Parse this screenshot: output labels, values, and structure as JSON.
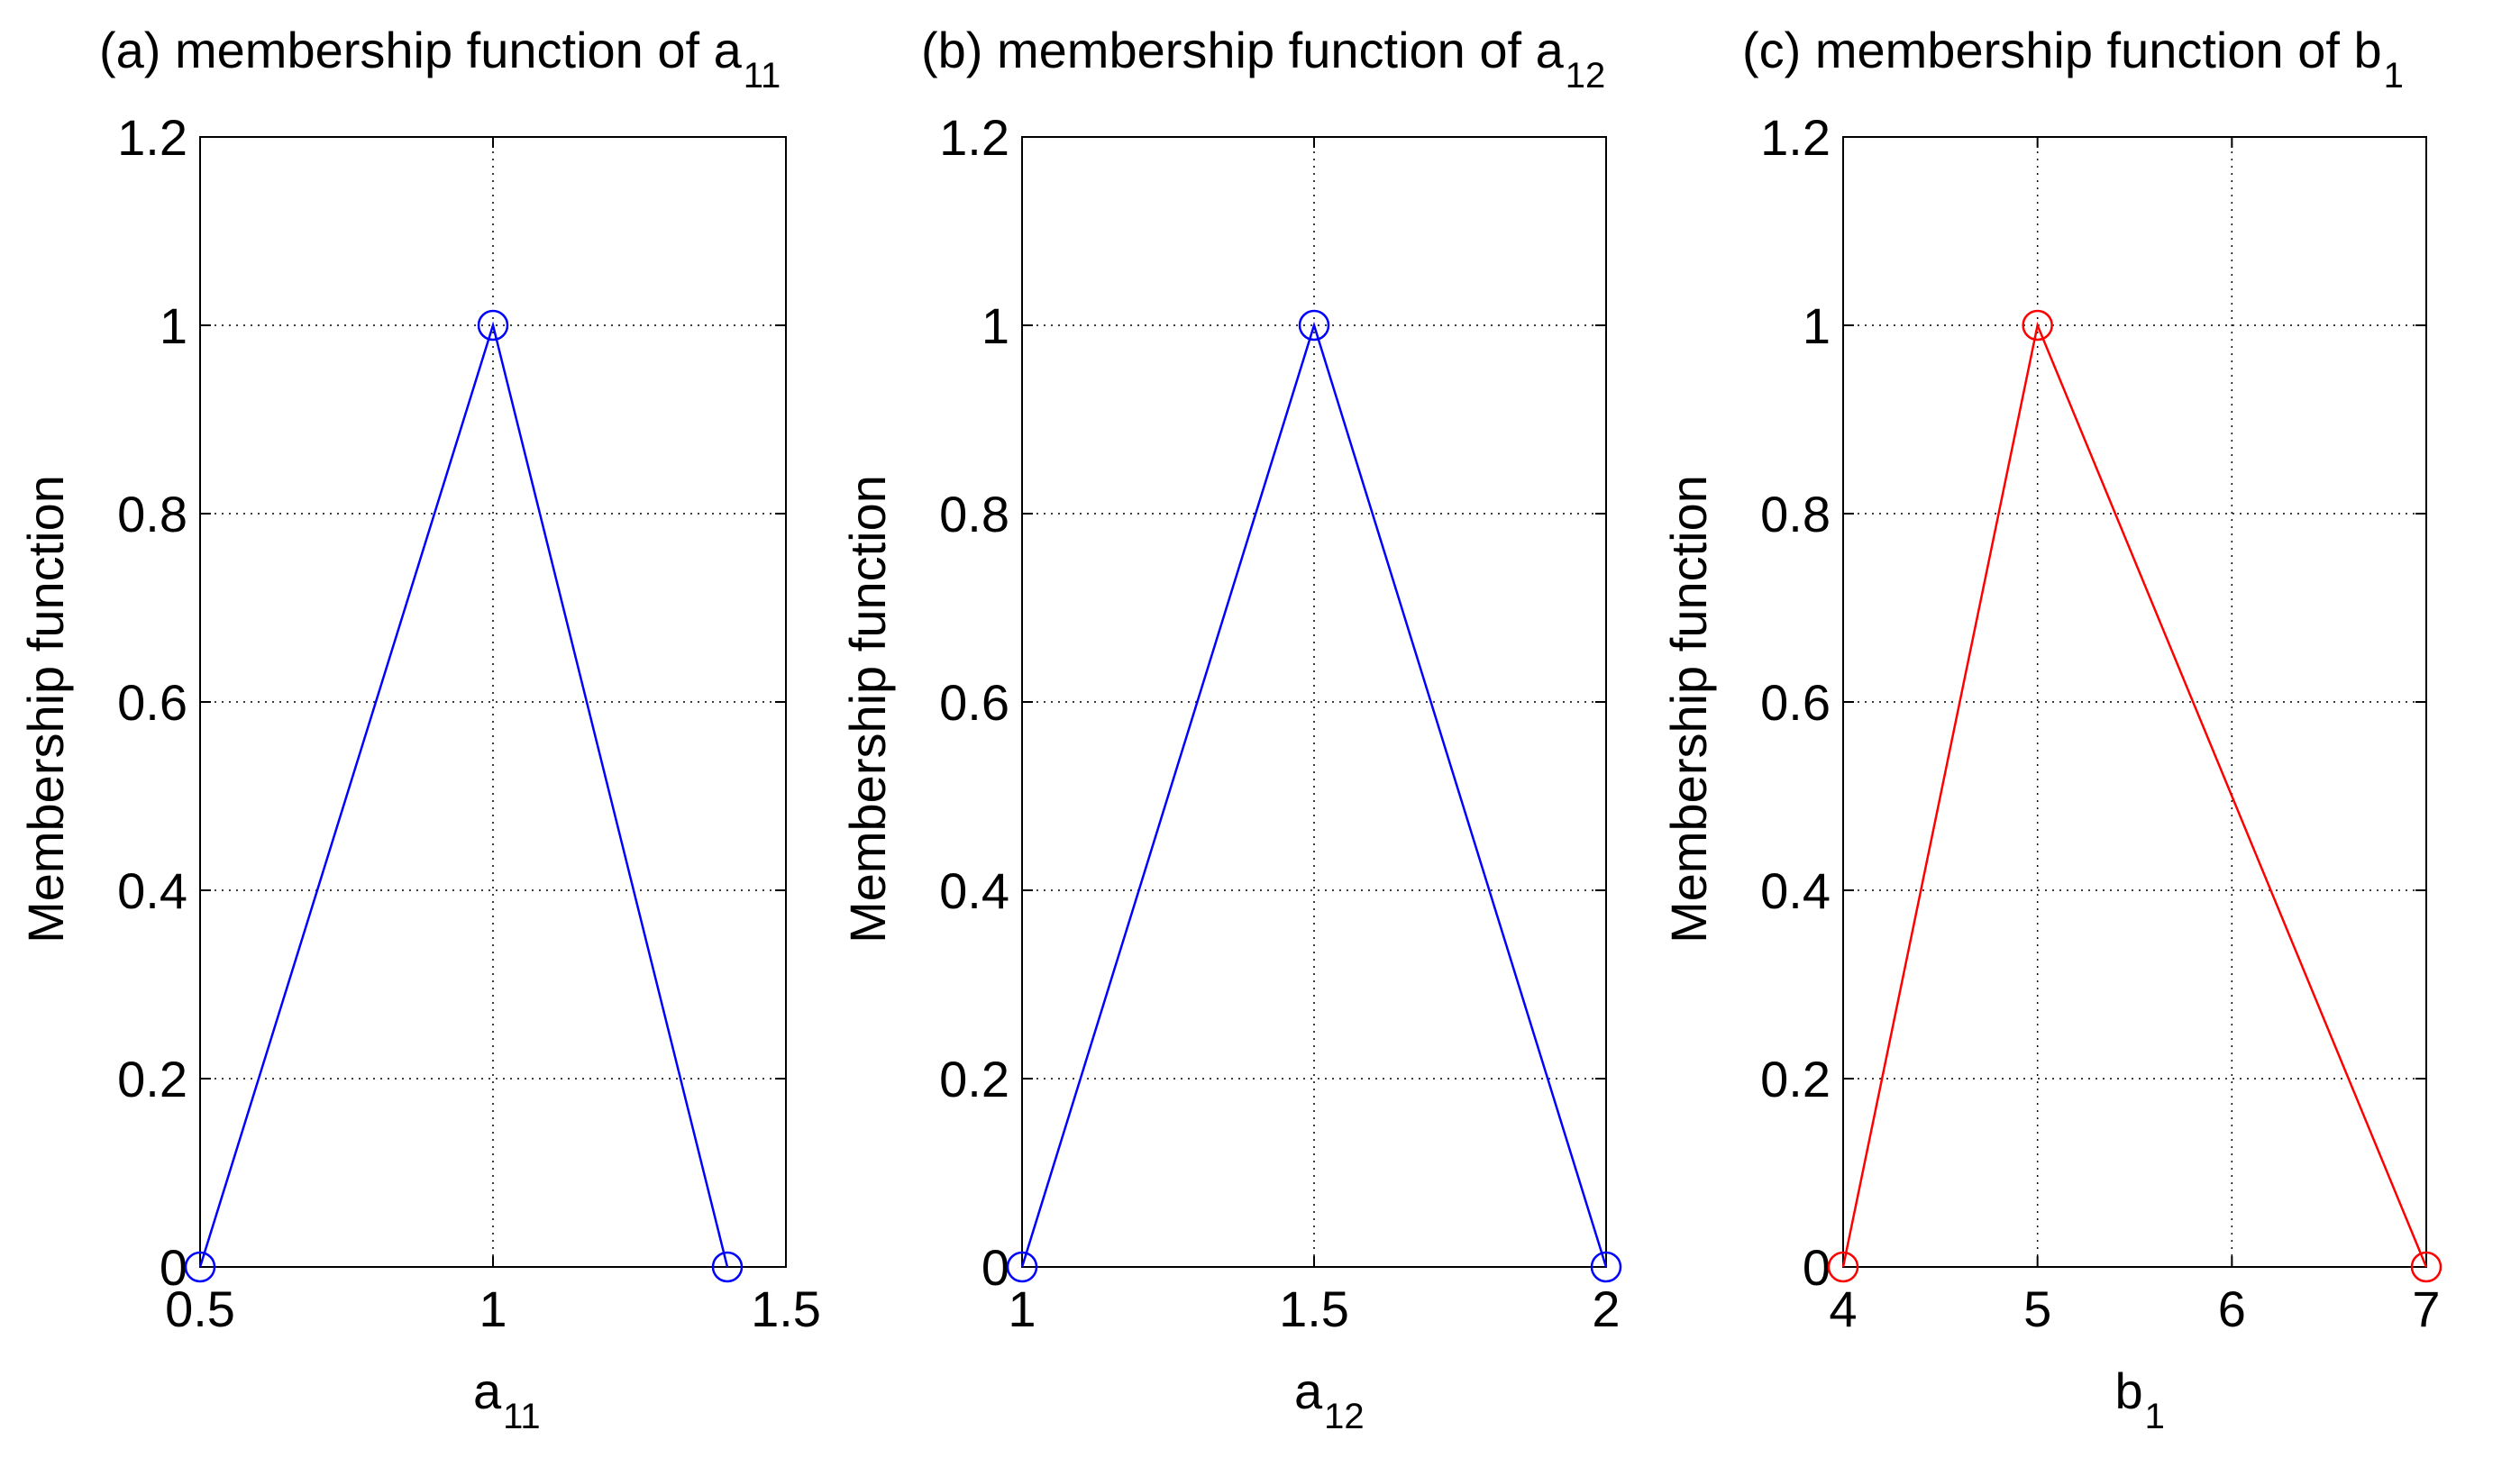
{
  "chart_data": [
    {
      "type": "line",
      "title": {
        "main": "(a) membership function of a",
        "sub": "11"
      },
      "xlabel": {
        "main": "a",
        "sub": "11"
      },
      "ylabel": "Membership function",
      "xlim": [
        0.5,
        1.5
      ],
      "ylim": [
        0,
        1.2
      ],
      "xticks": [
        0.5,
        1,
        1.5
      ],
      "xtick_labels": [
        "0.5",
        "1",
        "1.5"
      ],
      "yticks": [
        0,
        0.2,
        0.4,
        0.6,
        0.8,
        1,
        1.2
      ],
      "ytick_labels": [
        "0",
        "0.2",
        "0.4",
        "0.6",
        "0.8",
        "1",
        "1.2"
      ],
      "grid": true,
      "marker": "circle",
      "color": "#0000ff",
      "x": [
        0.5,
        1,
        1.4
      ],
      "y": [
        0,
        1,
        0
      ]
    },
    {
      "type": "line",
      "title": {
        "main": "(b) membership function of a",
        "sub": "12"
      },
      "xlabel": {
        "main": "a",
        "sub": "12"
      },
      "ylabel": "Membership function",
      "xlim": [
        1,
        2
      ],
      "ylim": [
        0,
        1.2
      ],
      "xticks": [
        1,
        1.5,
        2
      ],
      "xtick_labels": [
        "1",
        "1.5",
        "2"
      ],
      "yticks": [
        0,
        0.2,
        0.4,
        0.6,
        0.8,
        1,
        1.2
      ],
      "ytick_labels": [
        "0",
        "0.2",
        "0.4",
        "0.6",
        "0.8",
        "1",
        "1.2"
      ],
      "grid": true,
      "marker": "circle",
      "color": "#0000ff",
      "x": [
        1,
        1.5,
        2
      ],
      "y": [
        0,
        1,
        0
      ]
    },
    {
      "type": "line",
      "title": {
        "main": "(c) membership function of b",
        "sub": "1"
      },
      "xlabel": {
        "main": "b",
        "sub": "1"
      },
      "ylabel": "Membership function",
      "xlim": [
        4,
        7
      ],
      "ylim": [
        0,
        1.2
      ],
      "xticks": [
        4,
        5,
        6,
        7
      ],
      "xtick_labels": [
        "4",
        "5",
        "6",
        "7"
      ],
      "yticks": [
        0,
        0.2,
        0.4,
        0.6,
        0.8,
        1,
        1.2
      ],
      "ytick_labels": [
        "0",
        "0.2",
        "0.4",
        "0.6",
        "0.8",
        "1",
        "1.2"
      ],
      "grid": true,
      "marker": "circle",
      "color": "#ff0000",
      "x": [
        4,
        5,
        7
      ],
      "y": [
        0,
        1,
        0
      ]
    }
  ]
}
